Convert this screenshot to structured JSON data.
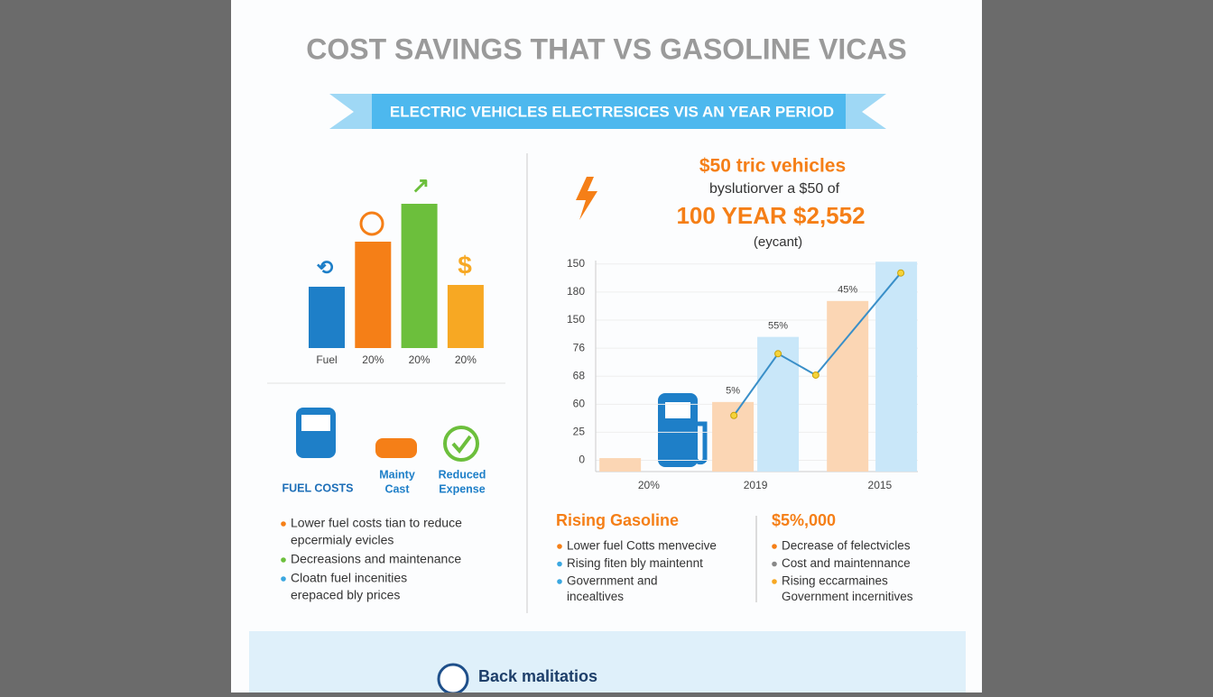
{
  "title": "COST SAVINGS THAT VS GASOLINE VICAS",
  "banner": "ELECTRIC VEHICLES ELECTRESICES VIS AN YEAR PERIOD",
  "chart_data": [
    {
      "type": "bar",
      "categories": [
        "Fuel",
        "20%",
        "20%",
        "20%"
      ],
      "values": [
        68,
        118,
        160,
        70
      ],
      "colors": [
        "#1e7fc8",
        "#f57f17",
        "#6cbf3c",
        "#f7a823"
      ],
      "ylim": [
        0,
        170
      ]
    },
    {
      "type": "bar-line",
      "ylim": [
        -10,
        178
      ],
      "yticks": [
        {
          "value": 175,
          "label": "150"
        },
        {
          "value": 150,
          "label": "180"
        },
        {
          "value": 125,
          "label": "150"
        },
        {
          "value": 100,
          "label": "76"
        },
        {
          "value": 75,
          "label": "68"
        },
        {
          "value": 50,
          "label": "60"
        },
        25,
        0
      ],
      "xlim": [
        0,
        10
      ],
      "xticks": [
        {
          "value": 1.65,
          "label": "20%"
        },
        {
          "value": 4.96,
          "label": "2019"
        },
        {
          "value": 8.82,
          "label": "2015"
        }
      ],
      "grid": true,
      "series": [
        {
          "type": "bar",
          "x": [
            0.76,
            4.26,
            5.66,
            7.82,
            9.33
          ],
          "values": [
            2,
            52,
            110,
            142,
            177
          ],
          "colors": [
            "#fbd6b4",
            "#fbd6b4",
            "#c9e7f9",
            "#fbd6b4",
            "#c9e7f9"
          ]
        },
        {
          "type": "line",
          "color": "#3a8fc8",
          "x": [
            4.29,
            5.66,
            6.83,
            9.47
          ],
          "values": [
            40,
            95,
            76,
            167
          ]
        }
      ],
      "annotations": [
        "5%",
        "55%",
        "45%"
      ]
    }
  ],
  "icons": [
    {
      "lines": [
        "FUEL COSTS"
      ],
      "color": "#1e6fb8"
    },
    {
      "lines": [
        "Mainty",
        "Cast"
      ],
      "color": "#1e7fc8"
    },
    {
      "lines": [
        "Reduced",
        "Expense"
      ],
      "color": "#1e7fc8"
    }
  ],
  "left_list": [
    {
      "lines": [
        "Lower fuel costs tian to reduce",
        "epcermialy evicles"
      ],
      "color": "#f57f17"
    },
    {
      "lines": [
        "Decreasions and maintenance"
      ],
      "color": "#6cbf3c"
    },
    {
      "lines": [
        "Cloatn fuel incenities",
        "erepaced bly prices"
      ],
      "color": "#3aa7e0"
    }
  ],
  "highlight": {
    "line1": "$50 tric vehicles",
    "line2": "byslutiorver a $50 of",
    "line3": "100 YEAR $2,552",
    "line4": "(eycant)"
  },
  "sections": [
    {
      "heading": "Rising Gasoline",
      "items": [
        {
          "lines": [
            "Lower fuel Cotts menvecive"
          ],
          "color": "#f57f17"
        },
        {
          "lines": [
            "Rising fiten bly maintennt"
          ],
          "color": "#3aa7e0"
        },
        {
          "lines": [
            "Government and",
            "incealtives"
          ],
          "color": "#3aa7e0"
        }
      ]
    },
    {
      "heading": "$5%,000",
      "items": [
        {
          "lines": [
            "Decrease of felectvicles"
          ],
          "color": "#f57f17"
        },
        {
          "lines": [
            "Cost and maintennance"
          ],
          "color": "#888888"
        },
        {
          "lines": [
            "Rising eccarmaines",
            "Government incernitives"
          ],
          "color": "#f7a823"
        }
      ]
    }
  ],
  "footer": {
    "title": "Back malitatios"
  }
}
